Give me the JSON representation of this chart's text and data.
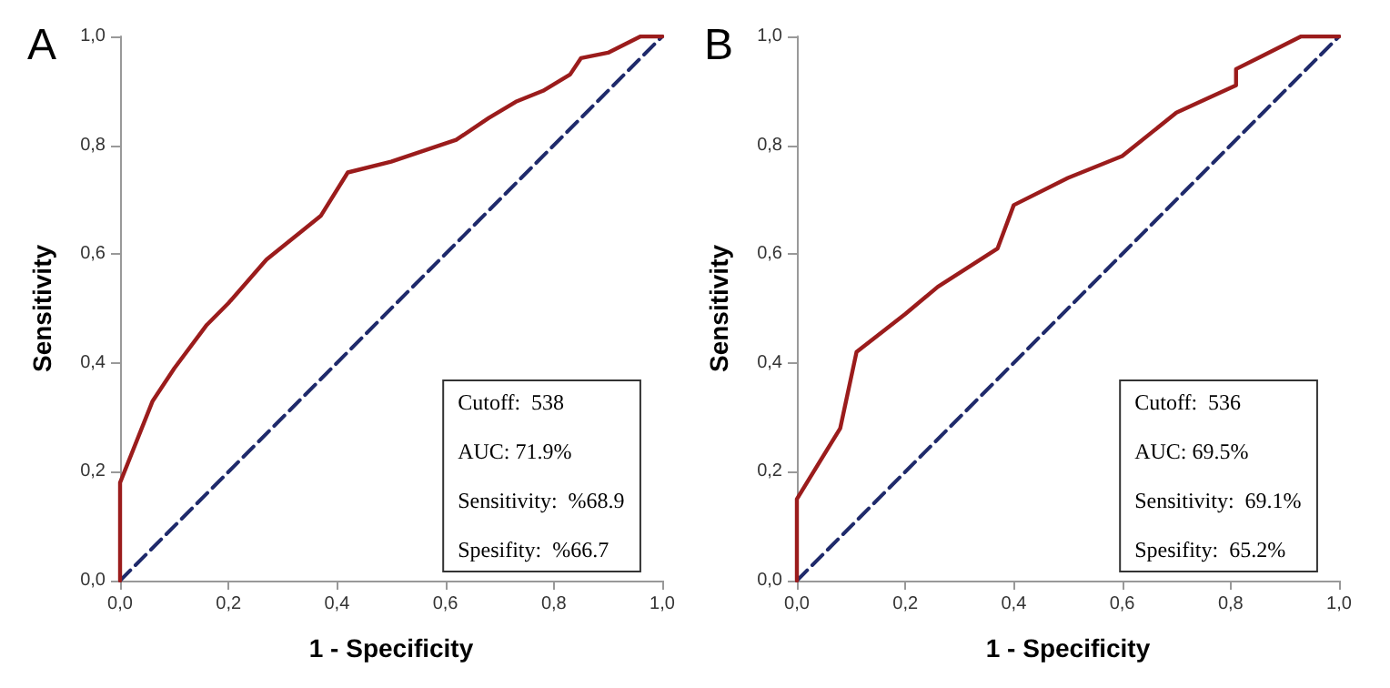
{
  "chart_data": [
    {
      "type": "line",
      "title": "A",
      "xlabel": "1 - Specificity",
      "ylabel": "Sensitivity",
      "marker": "none",
      "grid": false,
      "xlim": [
        0,
        1
      ],
      "ylim": [
        0,
        1
      ],
      "xticks": [
        {
          "value": 0,
          "label": "0,0"
        },
        {
          "value": 0.2,
          "label": "0,2"
        },
        {
          "value": 0.4,
          "label": "0,4"
        },
        {
          "value": 0.6,
          "label": "0,6"
        },
        {
          "value": 0.8,
          "label": "0,8"
        },
        {
          "value": 1,
          "label": "1,0"
        }
      ],
      "yticks": [
        {
          "value": 0,
          "label": "0,0"
        },
        {
          "value": 0.2,
          "label": "0,2"
        },
        {
          "value": 0.4,
          "label": "0,4"
        },
        {
          "value": 0.6,
          "label": "0,6"
        },
        {
          "value": 0.8,
          "label": "0,8"
        },
        {
          "value": 1,
          "label": "1,0"
        }
      ],
      "series": [
        {
          "color": "#9b1c1c",
          "line_style": "solid",
          "x": [
            0,
            0,
            0.06,
            0.1,
            0.16,
            0.2,
            0.27,
            0.32,
            0.37,
            0.42,
            0.5,
            0.62,
            0.68,
            0.73,
            0.78,
            0.83,
            0.85,
            0.9,
            0.96,
            1
          ],
          "values": [
            0,
            0.18,
            0.33,
            0.39,
            0.47,
            0.51,
            0.59,
            0.63,
            0.67,
            0.75,
            0.77,
            0.81,
            0.85,
            0.88,
            0.9,
            0.93,
            0.96,
            0.97,
            1,
            1
          ]
        },
        {
          "color": "#1f2a6b",
          "line_style": "dashed",
          "x": [
            0,
            1
          ],
          "values": [
            0,
            1
          ]
        }
      ],
      "annotations": [
        "Cutoff:  538",
        "AUC: 71.9%",
        "Sensitivity:  %68.9",
        "Spesifity:  %66.7"
      ]
    },
    {
      "type": "line",
      "title": "B",
      "xlabel": "1 - Specificity",
      "ylabel": "Sensitivity",
      "marker": "none",
      "grid": false,
      "xlim": [
        0,
        1
      ],
      "ylim": [
        0,
        1
      ],
      "xticks": [
        {
          "value": 0,
          "label": "0,0"
        },
        {
          "value": 0.2,
          "label": "0,2"
        },
        {
          "value": 0.4,
          "label": "0,4"
        },
        {
          "value": 0.6,
          "label": "0,6"
        },
        {
          "value": 0.8,
          "label": "0,8"
        },
        {
          "value": 1,
          "label": "1,0"
        }
      ],
      "yticks": [
        {
          "value": 0,
          "label": "0,0"
        },
        {
          "value": 0.2,
          "label": "0,2"
        },
        {
          "value": 0.4,
          "label": "0,4"
        },
        {
          "value": 0.6,
          "label": "0,6"
        },
        {
          "value": 0.8,
          "label": "0,8"
        },
        {
          "value": 1,
          "label": "1,0"
        }
      ],
      "series": [
        {
          "color": "#9b1c1c",
          "line_style": "solid",
          "x": [
            0,
            0,
            0.08,
            0.11,
            0.2,
            0.26,
            0.37,
            0.4,
            0.5,
            0.6,
            0.7,
            0.81,
            0.81,
            0.85,
            0.93,
            1
          ],
          "values": [
            0,
            0.15,
            0.28,
            0.42,
            0.49,
            0.54,
            0.61,
            0.69,
            0.74,
            0.78,
            0.86,
            0.91,
            0.94,
            0.96,
            1,
            1
          ]
        },
        {
          "color": "#1f2a6b",
          "line_style": "dashed",
          "x": [
            0,
            1
          ],
          "values": [
            0,
            1
          ]
        }
      ],
      "annotations": [
        "Cutoff:  536",
        "AUC: 69.5%",
        "Sensitivity:  69.1%",
        "Spesifity:  65.2%"
      ]
    }
  ]
}
